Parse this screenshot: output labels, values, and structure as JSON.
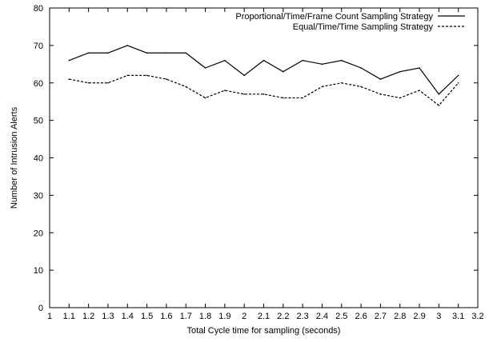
{
  "chart_data": {
    "type": "line",
    "title": "",
    "xlabel": "Total Cycle time for sampling (seconds)",
    "ylabel": "Number of Intrusion Alerts",
    "xlim": [
      1,
      3.2
    ],
    "ylim": [
      0,
      80
    ],
    "x_ticks": [
      1,
      1.1,
      1.2,
      1.3,
      1.4,
      1.5,
      1.6,
      1.7,
      1.8,
      1.9,
      2,
      2.1,
      2.2,
      2.3,
      2.4,
      2.5,
      2.6,
      2.7,
      2.8,
      2.9,
      3,
      3.1,
      3.2
    ],
    "y_ticks": [
      0,
      10,
      20,
      30,
      40,
      50,
      60,
      70,
      80
    ],
    "grid": false,
    "legend_position": "top-right",
    "x": [
      1.1,
      1.2,
      1.3,
      1.4,
      1.5,
      1.6,
      1.7,
      1.8,
      1.9,
      2,
      2.1,
      2.2,
      2.3,
      2.4,
      2.5,
      2.6,
      2.7,
      2.8,
      2.9,
      3,
      3.1
    ],
    "series": [
      {
        "name": "Proportional/Time/Frame Count Sampling Strategy",
        "style": "solid",
        "color": "#000000",
        "values": [
          66,
          68,
          68,
          70,
          68,
          68,
          68,
          64,
          66,
          62,
          66,
          63,
          66,
          65,
          66,
          64,
          61,
          63,
          64,
          57,
          62
        ]
      },
      {
        "name": "Equal/Time/Time Sampling Strategy",
        "style": "dashed",
        "color": "#000000",
        "values": [
          61,
          60,
          60,
          62,
          62,
          61,
          59,
          56,
          58,
          57,
          57,
          56,
          56,
          59,
          60,
          59,
          57,
          56,
          58,
          54,
          60
        ]
      }
    ]
  }
}
